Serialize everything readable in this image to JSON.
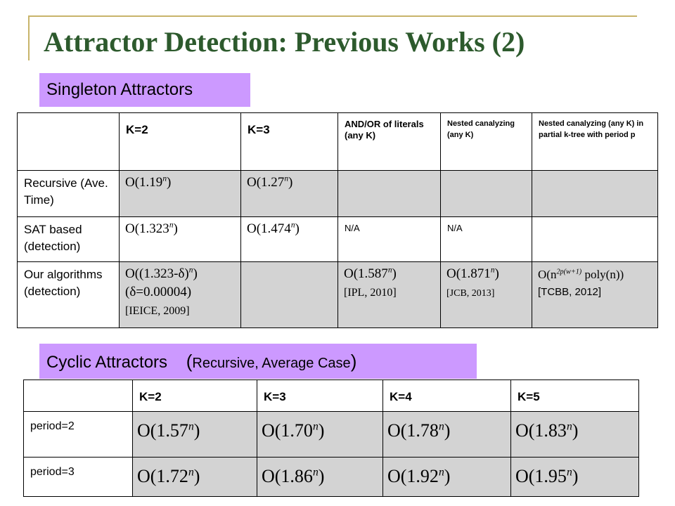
{
  "title": "Attractor Detection: Previous Works (2)",
  "singleton": {
    "label": "Singleton Attractors",
    "headers": [
      "K=2",
      "K=3",
      "AND/OR of literals (any K)",
      "Nested canalyzing (any K)",
      "Nested canalyzing (any K) in partial k-tree with period p"
    ],
    "rows": [
      {
        "label": "Recursive (Ave. Time)",
        "k2_base": "O(1.19",
        "k2_exp": "n",
        "k2_tail": ")",
        "k3_base": "O(1.27",
        "k3_exp": "n",
        "k3_tail": ")"
      },
      {
        "label": "SAT based (detection)",
        "k2_base": "O(1.323",
        "k2_exp": "n",
        "k2_tail": ")",
        "k3_base": "O(1.474",
        "k3_exp": "n",
        "k3_tail": ")",
        "andor": "N/A",
        "nested": "N/A"
      },
      {
        "label": "Our algorithms (detection)",
        "k2_base": "O((1.323-δ)",
        "k2_exp": "n",
        "k2_tail": ")",
        "k2_delta": "(δ=0.00004)",
        "k2_cite": "[IEICE, 2009]",
        "andor_base": "O(1.587",
        "andor_exp": "n",
        "andor_tail": ")",
        "andor_cite": "[IPL, 2010]",
        "nested_base": "O(1.871",
        "nested_exp": "n",
        "nested_tail": ")",
        "nested_cite": "[JCB, 2013]",
        "ktree_base": "O(n",
        "ktree_exp": "2p(w+1)",
        "ktree_tail": " poly(n))",
        "ktree_cite": "[TCBB, 2012]"
      }
    ]
  },
  "cyclic": {
    "label": "Cyclic Attractors",
    "paren_open": "(",
    "sublabel": "Recursive, Average Case",
    "paren_close": ")",
    "headers": [
      "K=2",
      "K=3",
      "K=4",
      "K=5"
    ],
    "exponent": "n",
    "rows": [
      {
        "label": "period=2",
        "values": [
          "O(1.57",
          "O(1.70",
          "O(1.78",
          "O(1.83"
        ]
      },
      {
        "label": "period=3",
        "values": [
          "O(1.72",
          "O(1.86",
          "O(1.92",
          "O(1.95"
        ]
      }
    ],
    "close": ")"
  },
  "colors": {
    "title": "#2d5a2d",
    "label_bg": "#cc99ff",
    "cell_gray": "#d3d3d3",
    "rule": "#c8b46a"
  }
}
